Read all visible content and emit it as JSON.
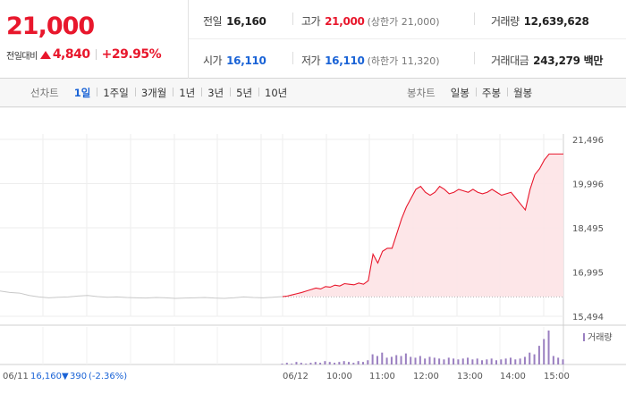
{
  "summary": {
    "price": "21,000",
    "prev_label": "전일대비",
    "change_abs": "4,840",
    "change_pct": "+29.95%"
  },
  "stats": {
    "prev_close_label": "전일",
    "prev_close": "16,160",
    "high_label": "고가",
    "high": "21,000",
    "upper_limit": "(상한가 21,000)",
    "volume_label": "거래량",
    "volume": "12,639,628",
    "open_label": "시가",
    "open": "16,110",
    "low_label": "저가",
    "low": "16,110",
    "lower_limit": "(하한가 11,320)",
    "amount_label": "거래대금",
    "amount": "243,279 백만"
  },
  "tabs": {
    "line_title": "선차트",
    "line_periods": [
      "1일",
      "1주일",
      "3개월",
      "1년",
      "3년",
      "5년",
      "10년"
    ],
    "line_active": 0,
    "candle_title": "봉차트",
    "candle_periods": [
      "일봉",
      "주봉",
      "월봉"
    ]
  },
  "chart": {
    "y_ticks": [
      "21,496",
      "19,996",
      "18,495",
      "16,995",
      "15,494"
    ],
    "x_labels_left": [
      "06/11",
      "06/12"
    ],
    "x_labels_right": [
      "10:00",
      "11:00",
      "12:00",
      "13:00",
      "14:00",
      "15:00"
    ],
    "volume_legend": "거래량",
    "prev_date": "06/11",
    "prev_price": "16,160",
    "prev_change": "390",
    "prev_pct": "(-2.36%)",
    "colors": {
      "up": "#e8172c",
      "down": "#1a63d6",
      "prev_line": "#c8c8c8",
      "volume": "#9a7fc0",
      "fill": "#fde3e6"
    }
  },
  "chart_data": {
    "type": "line",
    "y_range": [
      15494,
      21496
    ],
    "baseline": 16160,
    "series": [
      {
        "values_prev_day": [
          16350,
          16300,
          16280,
          16200,
          16150,
          16120,
          16140,
          16150,
          16180,
          16200,
          16160,
          16140,
          16150,
          16130,
          16120,
          16110,
          16130,
          16120,
          16100,
          16110,
          16120,
          16130,
          16110,
          16100,
          16120,
          16150,
          16130,
          16120,
          16140,
          16160
        ],
        "values_today": [
          16160,
          16180,
          16220,
          16260,
          16300,
          16350,
          16400,
          16450,
          16420,
          16500,
          16480,
          16550,
          16520,
          16600,
          16580,
          16560,
          16620,
          16580,
          16700,
          17600,
          17300,
          17700,
          17800,
          17800,
          18300,
          18800,
          19200,
          19500,
          19800,
          19900,
          19700,
          19600,
          19700,
          19900,
          19800,
          19650,
          19700,
          19800,
          19750,
          19700,
          19800,
          19700,
          19650,
          19700,
          19800,
          19700,
          19600,
          19650,
          19700,
          19500,
          19300,
          19100,
          19800,
          20300,
          20500,
          20800,
          21000,
          21000,
          21000,
          21000
        ]
      }
    ],
    "volume_today": [
      1,
      2,
      1,
      3,
      2,
      1,
      2,
      3,
      2,
      4,
      3,
      2,
      3,
      4,
      3,
      2,
      4,
      3,
      5,
      12,
      10,
      14,
      8,
      9,
      11,
      10,
      13,
      9,
      8,
      10,
      7,
      9,
      8,
      7,
      6,
      8,
      7,
      6,
      7,
      8,
      6,
      7,
      5,
      6,
      7,
      5,
      6,
      7,
      8,
      6,
      7,
      9,
      14,
      12,
      22,
      30,
      40,
      10,
      8,
      6
    ]
  }
}
